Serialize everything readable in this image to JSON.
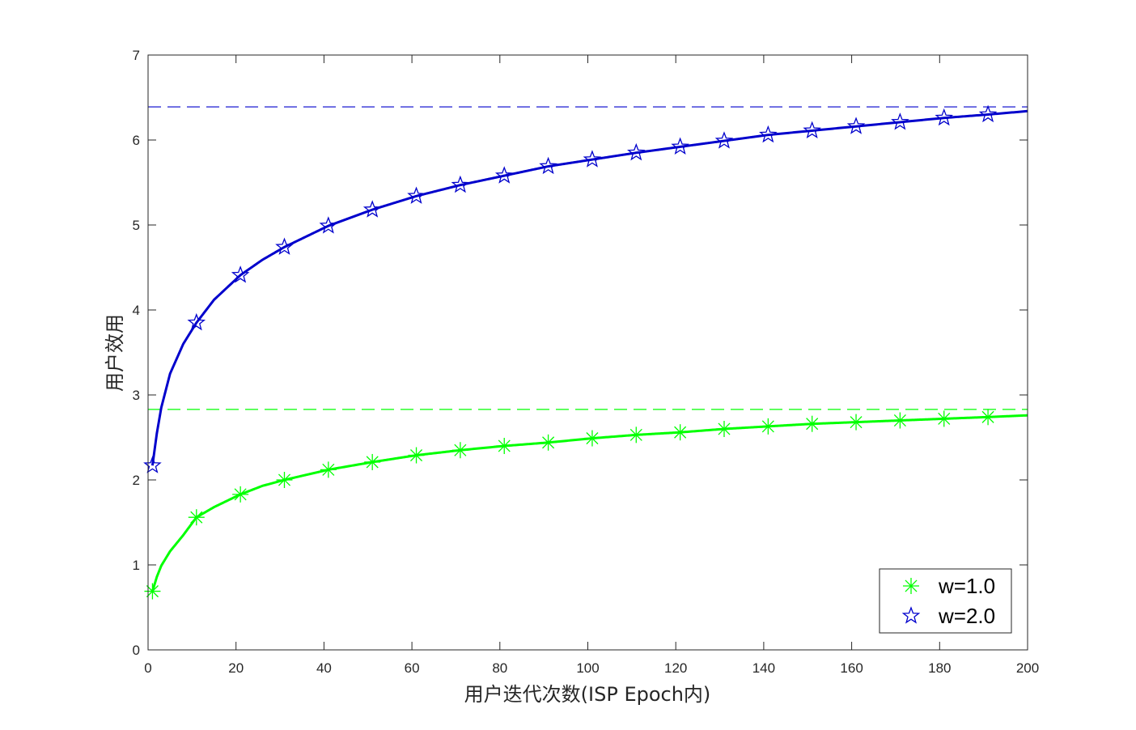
{
  "chart_data": {
    "type": "line",
    "xlabel": "用户迭代次数(ISP Epoch内)",
    "ylabel": "用户效用",
    "xlim": [
      0,
      200
    ],
    "ylim": [
      0,
      7
    ],
    "xticks": [
      0,
      20,
      40,
      60,
      80,
      100,
      120,
      140,
      160,
      180,
      200
    ],
    "yticks": [
      0,
      1,
      2,
      3,
      4,
      5,
      6,
      7
    ],
    "grid": false,
    "legend_position": "bottom-right",
    "series": [
      {
        "name": "w=1.0",
        "color": "#00ff00",
        "marker": "asterisk",
        "asymptote": 2.83,
        "marker_x": [
          1,
          11,
          21,
          31,
          41,
          51,
          61,
          71,
          81,
          91,
          101,
          111,
          121,
          131,
          141,
          151,
          161,
          171,
          181,
          191
        ],
        "curve_x": [
          1,
          2,
          3,
          5,
          8,
          11,
          15,
          21,
          26,
          31,
          41,
          51,
          61,
          71,
          81,
          91,
          101,
          111,
          121,
          131,
          141,
          151,
          161,
          171,
          181,
          191,
          200
        ],
        "curve_y": [
          0.69,
          0.86,
          0.99,
          1.16,
          1.35,
          1.56,
          1.68,
          1.83,
          1.93,
          2.0,
          2.12,
          2.21,
          2.29,
          2.35,
          2.4,
          2.44,
          2.49,
          2.53,
          2.56,
          2.6,
          2.63,
          2.66,
          2.68,
          2.7,
          2.72,
          2.74,
          2.76
        ]
      },
      {
        "name": "w=2.0",
        "color": "#0000cc",
        "marker": "star",
        "asymptote": 6.39,
        "marker_x": [
          1,
          11,
          21,
          31,
          41,
          51,
          61,
          71,
          81,
          91,
          101,
          111,
          121,
          131,
          141,
          151,
          161,
          171,
          181,
          191
        ],
        "curve_x": [
          1,
          2,
          3,
          5,
          8,
          11,
          15,
          21,
          26,
          31,
          41,
          51,
          61,
          71,
          81,
          91,
          101,
          111,
          121,
          131,
          141,
          151,
          161,
          171,
          181,
          191,
          200
        ],
        "curve_y": [
          2.17,
          2.55,
          2.85,
          3.25,
          3.6,
          3.85,
          4.12,
          4.41,
          4.59,
          4.74,
          4.99,
          5.18,
          5.34,
          5.47,
          5.58,
          5.69,
          5.77,
          5.85,
          5.92,
          5.99,
          6.06,
          6.11,
          6.16,
          6.21,
          6.26,
          6.3,
          6.34
        ]
      }
    ]
  }
}
